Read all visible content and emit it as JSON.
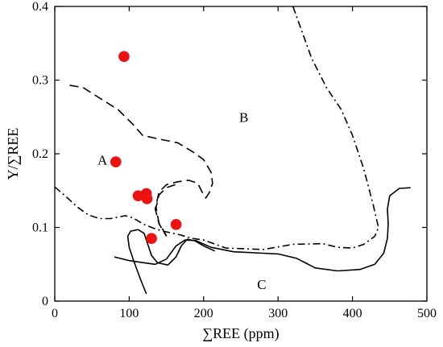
{
  "chart_data": {
    "type": "scatter",
    "title": "",
    "xlabel": "∑REE (ppm)",
    "ylabel": "Y/∑REE",
    "xlim": [
      0,
      500
    ],
    "ylim": [
      0,
      0.4
    ],
    "xticks": [
      "0",
      "100",
      "200",
      "300",
      "400",
      "500"
    ],
    "yticks": [
      "0",
      "0.1",
      "0.2",
      "0.3",
      "0.4"
    ],
    "grid": false,
    "point_color": "#ee1111",
    "points": [
      {
        "x": 93,
        "y": 0.332
      },
      {
        "x": 82,
        "y": 0.189
      },
      {
        "x": 112,
        "y": 0.143
      },
      {
        "x": 123,
        "y": 0.146
      },
      {
        "x": 124,
        "y": 0.139
      },
      {
        "x": 163,
        "y": 0.104
      },
      {
        "x": 130,
        "y": 0.085
      }
    ],
    "regions": [
      {
        "label": "A",
        "x": 64,
        "y": 0.192
      },
      {
        "label": "B",
        "x": 254,
        "y": 0.25
      },
      {
        "label": "C",
        "x": 278,
        "y": 0.023
      }
    ],
    "boundaries": [
      {
        "style": "dashed",
        "points": [
          [
            20,
            0.293
          ],
          [
            38,
            0.29
          ],
          [
            58,
            0.277
          ],
          [
            85,
            0.26
          ],
          [
            105,
            0.24
          ],
          [
            118,
            0.225
          ],
          [
            140,
            0.22
          ],
          [
            165,
            0.215
          ],
          [
            185,
            0.203
          ],
          [
            200,
            0.192
          ],
          [
            210,
            0.175
          ],
          [
            212,
            0.16
          ],
          [
            208,
            0.148
          ],
          [
            203,
            0.14
          ],
          [
            198,
            0.148
          ],
          [
            192,
            0.16
          ],
          [
            180,
            0.164
          ],
          [
            165,
            0.162
          ],
          [
            150,
            0.158
          ],
          [
            140,
            0.148
          ],
          [
            135,
            0.125
          ],
          [
            140,
            0.105
          ],
          [
            150,
            0.088
          ]
        ]
      },
      {
        "style": "dashed",
        "points": [
          [
            162,
            0.158
          ],
          [
            150,
            0.154
          ],
          [
            140,
            0.144
          ],
          [
            136,
            0.127
          ],
          [
            140,
            0.106
          ],
          [
            150,
            0.089
          ]
        ]
      },
      {
        "style": "dashdot",
        "points": [
          [
            0,
            0.155
          ],
          [
            15,
            0.142
          ],
          [
            30,
            0.128
          ],
          [
            45,
            0.117
          ],
          [
            60,
            0.112
          ],
          [
            75,
            0.112
          ],
          [
            95,
            0.116
          ],
          [
            105,
            0.113
          ],
          [
            120,
            0.104
          ],
          [
            135,
            0.098
          ],
          [
            150,
            0.094
          ],
          [
            168,
            0.09
          ],
          [
            185,
            0.085
          ],
          [
            200,
            0.083
          ],
          [
            230,
            0.072
          ],
          [
            280,
            0.07
          ],
          [
            320,
            0.077
          ],
          [
            360,
            0.078
          ],
          [
            380,
            0.073
          ],
          [
            400,
            0.072
          ],
          [
            415,
            0.077
          ],
          [
            430,
            0.088
          ],
          [
            435,
            0.1
          ],
          [
            428,
            0.13
          ],
          [
            415,
            0.18
          ],
          [
            400,
            0.225
          ],
          [
            385,
            0.26
          ],
          [
            365,
            0.29
          ],
          [
            345,
            0.33
          ],
          [
            320,
            0.4
          ]
        ]
      },
      {
        "style": "solid",
        "points": [
          [
            80,
            0.06
          ],
          [
            100,
            0.055
          ],
          [
            120,
            0.052
          ],
          [
            135,
            0.05
          ],
          [
            150,
            0.057
          ],
          [
            163,
            0.075
          ],
          [
            175,
            0.083
          ],
          [
            190,
            0.082
          ],
          [
            210,
            0.073
          ],
          [
            240,
            0.067
          ],
          [
            280,
            0.065
          ],
          [
            300,
            0.064
          ],
          [
            325,
            0.058
          ],
          [
            350,
            0.045
          ],
          [
            380,
            0.041
          ],
          [
            410,
            0.043
          ],
          [
            430,
            0.05
          ],
          [
            442,
            0.065
          ],
          [
            447,
            0.085
          ],
          [
            448,
            0.105
          ],
          [
            447,
            0.125
          ],
          [
            450,
            0.143
          ],
          [
            463,
            0.153
          ],
          [
            478,
            0.154
          ]
        ]
      },
      {
        "style": "solid",
        "points": [
          [
            123,
            0.01
          ],
          [
            115,
            0.03
          ],
          [
            106,
            0.055
          ],
          [
            100,
            0.073
          ],
          [
            98,
            0.088
          ],
          [
            102,
            0.095
          ],
          [
            112,
            0.097
          ],
          [
            120,
            0.092
          ],
          [
            125,
            0.077
          ],
          [
            130,
            0.062
          ],
          [
            138,
            0.052
          ],
          [
            152,
            0.049
          ],
          [
            163,
            0.06
          ],
          [
            170,
            0.075
          ],
          [
            178,
            0.084
          ],
          [
            188,
            0.082
          ],
          [
            200,
            0.075
          ],
          [
            215,
            0.068
          ]
        ]
      }
    ]
  }
}
